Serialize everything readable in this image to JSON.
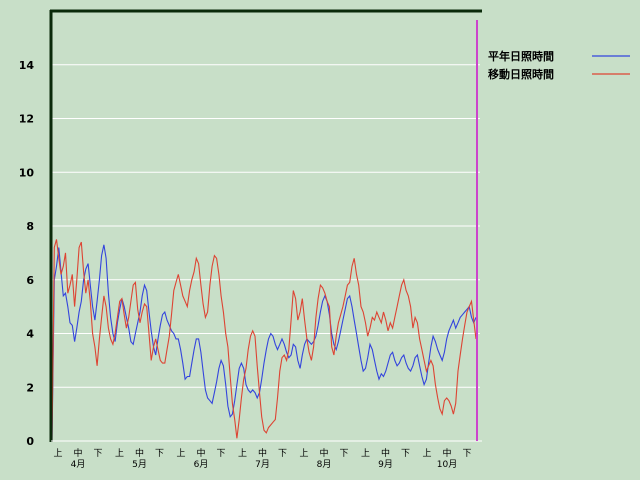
{
  "chart_data": {
    "type": "line",
    "title": "",
    "xlabel": "",
    "ylabel": "",
    "ylim": [
      0,
      16
    ],
    "yticks": [
      0,
      2,
      4,
      6,
      8,
      10,
      12,
      14
    ],
    "grid": true,
    "legend_position": "top-right",
    "months": [
      "4月",
      "5月",
      "6月",
      "7月",
      "8月",
      "9月",
      "10月"
    ],
    "decades": [
      "上",
      "中",
      "下"
    ],
    "series": [
      {
        "name": "平年日照時間",
        "color": "#3344dd",
        "values": [
          0,
          6.0,
          6.5,
          7.2,
          6.3,
          5.4,
          5.5,
          5.0,
          4.4,
          4.3,
          3.7,
          4.2,
          4.8,
          5.2,
          6.0,
          6.4,
          6.6,
          5.8,
          5.0,
          4.5,
          5.2,
          6.0,
          6.9,
          7.3,
          6.8,
          5.5,
          4.6,
          4.0,
          3.7,
          4.4,
          4.9,
          5.3,
          5.0,
          4.6,
          4.2,
          3.7,
          3.6,
          4.0,
          4.4,
          4.8,
          5.4,
          5.8,
          5.6,
          4.8,
          4.1,
          3.5,
          3.2,
          3.8,
          4.3,
          4.7,
          4.8,
          4.5,
          4.3,
          4.1,
          4.0,
          3.8,
          3.8,
          3.4,
          2.9,
          2.3,
          2.4,
          2.4,
          2.9,
          3.4,
          3.8,
          3.8,
          3.3,
          2.6,
          1.9,
          1.6,
          1.5,
          1.4,
          1.8,
          2.2,
          2.7,
          3.0,
          2.8,
          2.1,
          1.3,
          0.9,
          1.0,
          1.5,
          2.1,
          2.7,
          2.9,
          2.7,
          2.1,
          1.9,
          1.8,
          1.9,
          1.8,
          1.6,
          1.8,
          2.3,
          2.9,
          3.4,
          3.8,
          4.0,
          3.9,
          3.6,
          3.4,
          3.6,
          3.8,
          3.6,
          3.3,
          3.1,
          3.2,
          3.6,
          3.5,
          3.0,
          2.7,
          3.2,
          3.6,
          3.8,
          3.7,
          3.6,
          3.7,
          3.9,
          4.3,
          4.8,
          5.2,
          5.4,
          5.2,
          4.7,
          4.0,
          3.6,
          3.4,
          3.7,
          4.1,
          4.5,
          4.9,
          5.3,
          5.4,
          5.0,
          4.5,
          4.0,
          3.5,
          3.0,
          2.6,
          2.7,
          3.1,
          3.6,
          3.4,
          3.0,
          2.6,
          2.3,
          2.5,
          2.4,
          2.6,
          2.9,
          3.2,
          3.3,
          3.0,
          2.8,
          2.9,
          3.1,
          3.2,
          2.9,
          2.7,
          2.6,
          2.8,
          3.1,
          3.2,
          2.8,
          2.4,
          2.1,
          2.3,
          2.9,
          3.5,
          3.9,
          3.7,
          3.4,
          3.2,
          3.0,
          3.3,
          3.8,
          4.1,
          4.3,
          4.5,
          4.2,
          4.4,
          4.6,
          4.7,
          4.8,
          4.9,
          5.0,
          4.6,
          4.4,
          4.6
        ]
      },
      {
        "name": "移動日照時間",
        "color": "#dd4433",
        "values": [
          0,
          7.2,
          7.5,
          6.8,
          6.2,
          6.5,
          7.0,
          5.5,
          5.8,
          6.2,
          5.0,
          6.0,
          7.2,
          7.4,
          6.3,
          5.5,
          6.0,
          5.2,
          4.0,
          3.5,
          2.8,
          3.8,
          4.6,
          5.4,
          5.0,
          4.2,
          3.8,
          3.6,
          4.0,
          4.6,
          5.2,
          5.3,
          4.7,
          4.2,
          4.6,
          5.2,
          5.8,
          5.9,
          4.9,
          4.4,
          4.8,
          5.1,
          5.0,
          4.0,
          3.0,
          3.5,
          3.8,
          3.4,
          3.0,
          2.9,
          2.9,
          3.4,
          3.9,
          4.7,
          5.6,
          5.9,
          6.2,
          5.8,
          5.4,
          5.2,
          5.0,
          5.6,
          6.0,
          6.3,
          6.8,
          6.6,
          5.8,
          5.1,
          4.6,
          4.8,
          5.8,
          6.5,
          6.9,
          6.8,
          6.2,
          5.4,
          4.8,
          4.0,
          3.5,
          2.4,
          1.4,
          0.8,
          0.1,
          0.8,
          1.6,
          2.3,
          2.7,
          3.4,
          3.9,
          4.1,
          3.9,
          2.8,
          1.8,
          0.9,
          0.4,
          0.3,
          0.5,
          0.6,
          0.7,
          0.8,
          1.6,
          2.6,
          3.1,
          3.2,
          3.0,
          3.4,
          4.5,
          5.6,
          5.3,
          4.5,
          4.8,
          5.3,
          4.5,
          3.8,
          3.3,
          3.0,
          3.5,
          4.6,
          5.3,
          5.8,
          5.7,
          5.5,
          5.2,
          5.0,
          3.5,
          3.2,
          3.9,
          4.4,
          4.7,
          5.0,
          5.4,
          5.8,
          5.9,
          6.5,
          6.8,
          6.2,
          5.8,
          5.0,
          4.8,
          4.4,
          3.9,
          4.2,
          4.6,
          4.5,
          4.8,
          4.6,
          4.4,
          4.8,
          4.5,
          4.1,
          4.4,
          4.2,
          4.6,
          5.0,
          5.4,
          5.8,
          6.0,
          5.6,
          5.4,
          5.0,
          4.2,
          4.6,
          4.4,
          3.8,
          3.4,
          3.0,
          2.6,
          2.8,
          3.0,
          2.8,
          2.1,
          1.6,
          1.2,
          1.0,
          1.5,
          1.6,
          1.5,
          1.3,
          1.0,
          1.4,
          2.6,
          3.2,
          3.8,
          4.3,
          4.8,
          5.0,
          5.2,
          4.5,
          3.8
        ]
      }
    ]
  }
}
